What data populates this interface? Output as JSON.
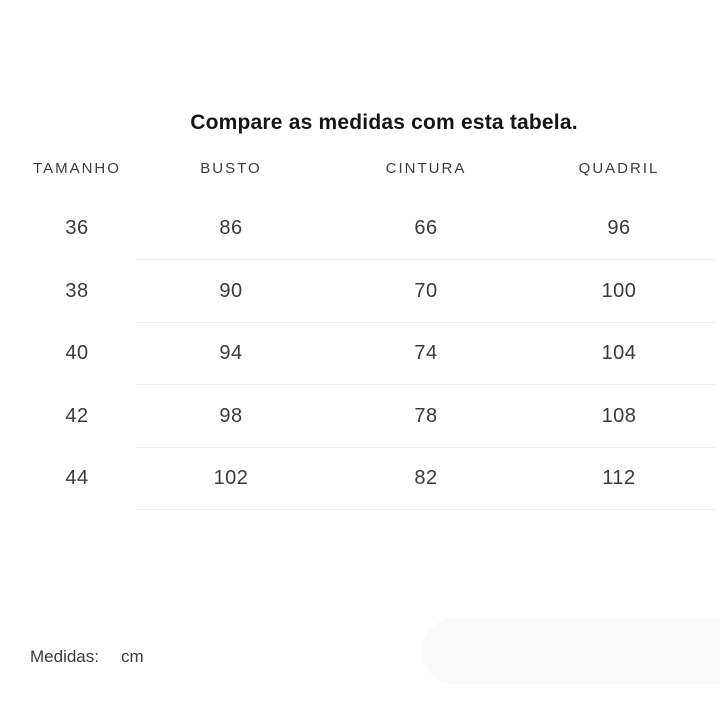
{
  "page": {
    "title": "Compare as medidas com esta tabela."
  },
  "size_table": {
    "columns": [
      "TAMANHO",
      "BUSTO",
      "CINTURA",
      "QUADRIL"
    ],
    "rows": [
      [
        "36",
        "86",
        "66",
        "96"
      ],
      [
        "38",
        "90",
        "70",
        "100"
      ],
      [
        "40",
        "94",
        "74",
        "104"
      ],
      [
        "42",
        "98",
        "78",
        "108"
      ],
      [
        "44",
        "102",
        "82",
        "112"
      ]
    ]
  },
  "footer": {
    "label": "Medidas:",
    "unit": "cm"
  },
  "colors": {
    "background": "#ffffff",
    "title_text": "#151515",
    "header_text": "#3d3d3d",
    "cell_text": "#3a3a3a",
    "divider": "#efefef",
    "corner_pill": "#fafafa"
  }
}
